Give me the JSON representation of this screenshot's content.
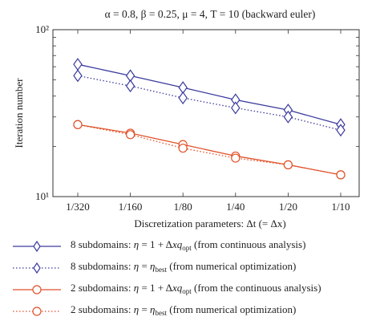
{
  "chart_data": {
    "type": "line",
    "title": "α = 0.8, β = 0.25, μ = 4, T = 10 (backward euler)",
    "xlabel": "Discretization parameters: Δt (= Δx)",
    "ylabel": "Iteration number",
    "y_scale": "log",
    "ylim": [
      10,
      100
    ],
    "y_ticks": [
      {
        "value": 10,
        "label": "10¹"
      },
      {
        "value": 100,
        "label": "10²"
      }
    ],
    "categories": [
      "1/320",
      "1/160",
      "1/80",
      "1/40",
      "1/20",
      "1/10"
    ],
    "series": [
      {
        "name": "8 subdomains: η = 1 + Δx q_opt (from continuous analysis)",
        "values": [
          62,
          53,
          45,
          38,
          33,
          27
        ],
        "color": "#3b3b9e",
        "dash": "solid",
        "marker": "diamond"
      },
      {
        "name": "8 subdomains: η = η_best (from numerical optimization)",
        "values": [
          53,
          46,
          39,
          34,
          30,
          25
        ],
        "color": "#3b3b9e",
        "dash": "dotted",
        "marker": "diamond"
      },
      {
        "name": "2 subdomains: η = 1 + Δx q_opt (from the continuous analysis)",
        "values": [
          27,
          24,
          20.5,
          17.5,
          15.5,
          13.5
        ],
        "color": "#e0522a",
        "dash": "solid",
        "marker": "circle"
      },
      {
        "name": "2 subdomains: η = η_best (from numerical optimization)",
        "values": [
          27,
          23.5,
          19.5,
          17,
          15.5,
          13.5
        ],
        "color": "#e0522a",
        "dash": "dotted",
        "marker": "circle"
      }
    ],
    "legend": "below"
  },
  "legend_items": [
    {
      "pre": "8 subdomains: ",
      "eta": "η",
      "mid": " = 1 + Δ",
      "xq": "xq",
      "sub": "opt",
      "post": " (from continuous analysis)"
    },
    {
      "pre": "8 subdomains: ",
      "eta": "η",
      "mid": " = ",
      "xq": "η",
      "sub": "best",
      "post": " (from numerical optimization)"
    },
    {
      "pre": "2 subdomains: ",
      "eta": "η",
      "mid": " = 1 + Δ",
      "xq": "xq",
      "sub": "opt",
      "post": " (from the continuous analysis)"
    },
    {
      "pre": "2 subdomains: ",
      "eta": "η",
      "mid": " = ",
      "xq": "η",
      "sub": "best",
      "post": " (from numerical optimization)"
    }
  ]
}
